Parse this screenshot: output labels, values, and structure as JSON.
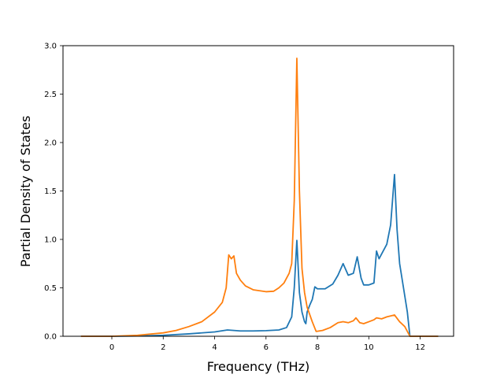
{
  "chart_data": {
    "type": "line",
    "xlabel": "Frequency (THz)",
    "ylabel": "Partial Density of States",
    "xlim": [
      -1.9,
      13.3
    ],
    "ylim": [
      0,
      3.0
    ],
    "xticks": [
      0,
      2,
      4,
      6,
      8,
      10,
      12
    ],
    "yticks": [
      0.0,
      0.5,
      1.0,
      1.5,
      2.0,
      2.5,
      3.0
    ],
    "xtick_labels": [
      "0",
      "2",
      "4",
      "6",
      "8",
      "10",
      "12"
    ],
    "ytick_labels": [
      "0.0",
      "0.5",
      "1.0",
      "1.5",
      "2.0",
      "2.5",
      "3.0"
    ],
    "grid": false,
    "series": [
      {
        "color": "#1f77b4",
        "points": [
          [
            -1.2,
            0.0
          ],
          [
            0.0,
            0.0
          ],
          [
            1.0,
            0.003
          ],
          [
            2.0,
            0.01
          ],
          [
            3.0,
            0.025
          ],
          [
            4.0,
            0.045
          ],
          [
            4.5,
            0.065
          ],
          [
            5.0,
            0.055
          ],
          [
            5.5,
            0.055
          ],
          [
            6.0,
            0.058
          ],
          [
            6.5,
            0.065
          ],
          [
            6.8,
            0.09
          ],
          [
            7.0,
            0.2
          ],
          [
            7.1,
            0.5
          ],
          [
            7.2,
            0.99
          ],
          [
            7.3,
            0.45
          ],
          [
            7.4,
            0.25
          ],
          [
            7.5,
            0.15
          ],
          [
            7.55,
            0.13
          ],
          [
            7.6,
            0.25
          ],
          [
            7.7,
            0.32
          ],
          [
            7.8,
            0.38
          ],
          [
            7.9,
            0.51
          ],
          [
            8.0,
            0.49
          ],
          [
            8.3,
            0.49
          ],
          [
            8.6,
            0.54
          ],
          [
            8.8,
            0.63
          ],
          [
            9.0,
            0.75
          ],
          [
            9.2,
            0.63
          ],
          [
            9.4,
            0.65
          ],
          [
            9.55,
            0.82
          ],
          [
            9.7,
            0.6
          ],
          [
            9.8,
            0.53
          ],
          [
            10.0,
            0.53
          ],
          [
            10.2,
            0.55
          ],
          [
            10.3,
            0.88
          ],
          [
            10.4,
            0.8
          ],
          [
            10.5,
            0.85
          ],
          [
            10.7,
            0.95
          ],
          [
            10.85,
            1.15
          ],
          [
            11.0,
            1.67
          ],
          [
            11.1,
            1.1
          ],
          [
            11.2,
            0.75
          ],
          [
            11.35,
            0.5
          ],
          [
            11.5,
            0.25
          ],
          [
            11.6,
            0.0
          ],
          [
            12.7,
            0.0
          ]
        ]
      },
      {
        "color": "#ff7f0e",
        "points": [
          [
            -1.2,
            0.0
          ],
          [
            0.0,
            0.0
          ],
          [
            1.0,
            0.01
          ],
          [
            2.0,
            0.035
          ],
          [
            2.5,
            0.06
          ],
          [
            3.0,
            0.1
          ],
          [
            3.5,
            0.15
          ],
          [
            4.0,
            0.25
          ],
          [
            4.3,
            0.35
          ],
          [
            4.45,
            0.5
          ],
          [
            4.55,
            0.84
          ],
          [
            4.65,
            0.8
          ],
          [
            4.75,
            0.83
          ],
          [
            4.85,
            0.65
          ],
          [
            5.0,
            0.58
          ],
          [
            5.2,
            0.52
          ],
          [
            5.5,
            0.48
          ],
          [
            6.0,
            0.46
          ],
          [
            6.3,
            0.465
          ],
          [
            6.5,
            0.5
          ],
          [
            6.7,
            0.55
          ],
          [
            6.9,
            0.65
          ],
          [
            7.0,
            0.75
          ],
          [
            7.1,
            1.4
          ],
          [
            7.2,
            2.87
          ],
          [
            7.3,
            1.5
          ],
          [
            7.4,
            0.7
          ],
          [
            7.5,
            0.45
          ],
          [
            7.6,
            0.3
          ],
          [
            7.8,
            0.15
          ],
          [
            7.95,
            0.05
          ],
          [
            8.2,
            0.06
          ],
          [
            8.5,
            0.09
          ],
          [
            8.8,
            0.14
          ],
          [
            9.0,
            0.15
          ],
          [
            9.2,
            0.14
          ],
          [
            9.4,
            0.16
          ],
          [
            9.5,
            0.19
          ],
          [
            9.65,
            0.14
          ],
          [
            9.8,
            0.13
          ],
          [
            10.0,
            0.15
          ],
          [
            10.2,
            0.17
          ],
          [
            10.3,
            0.19
          ],
          [
            10.5,
            0.18
          ],
          [
            10.7,
            0.2
          ],
          [
            11.0,
            0.22
          ],
          [
            11.2,
            0.15
          ],
          [
            11.4,
            0.1
          ],
          [
            11.6,
            0.0
          ],
          [
            12.7,
            0.0
          ]
        ]
      }
    ]
  }
}
